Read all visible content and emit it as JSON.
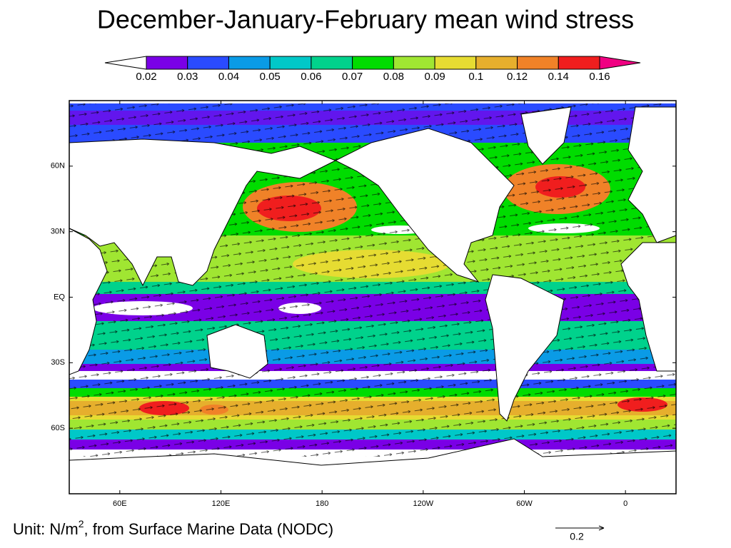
{
  "title": "December-January-February mean wind stress",
  "colorbar": {
    "levels": [
      0.02,
      0.03,
      0.04,
      0.05,
      0.06,
      0.07,
      0.08,
      0.09,
      0.1,
      0.12,
      0.14,
      0.16
    ],
    "colors": [
      "#7a00e6",
      "#2a4bff",
      "#0a9be6",
      "#00c8c8",
      "#00d28c",
      "#00dc00",
      "#a0e632",
      "#e6dc32",
      "#e6af2d",
      "#f08228",
      "#f01e1e"
    ],
    "under_color": "#ffffff",
    "over_color": "#f00082"
  },
  "map": {
    "lonlim": [
      30,
      390
    ],
    "latlim": [
      -90,
      90
    ],
    "lat_ticks": [
      {
        "value": 60,
        "label": "60N"
      },
      {
        "value": 30,
        "label": "30N"
      },
      {
        "value": 0,
        "label": "EQ"
      },
      {
        "value": -30,
        "label": "30S"
      },
      {
        "value": -60,
        "label": "60S"
      }
    ],
    "lon_ticks": [
      {
        "value": 60,
        "label": "60E"
      },
      {
        "value": 120,
        "label": "120E"
      },
      {
        "value": 180,
        "label": "180"
      },
      {
        "value": 240,
        "label": "120W"
      },
      {
        "value": 300,
        "label": "60W"
      },
      {
        "value": 360,
        "label": "0"
      }
    ]
  },
  "footnote": {
    "unit": "Unit: N/m",
    "superscript": "2",
    "source": ", from Surface Marine Data (NODC)"
  },
  "reference_vector": 0.2
}
